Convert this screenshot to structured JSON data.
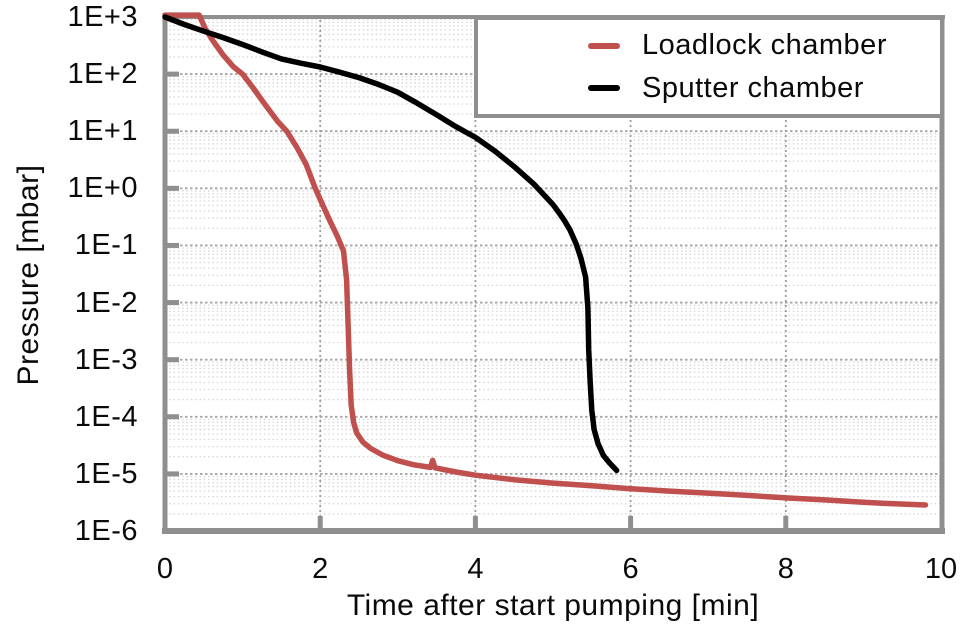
{
  "chart_data": {
    "type": "line",
    "title": "",
    "xlabel": "Time after start pumping [min]",
    "ylabel": "Pressure [mbar]",
    "x_axis": {
      "min": 0,
      "max": 10,
      "ticks": [
        0,
        2,
        4,
        6,
        8,
        10
      ],
      "gridline_ticks": [
        2,
        4,
        6,
        8
      ]
    },
    "y_axis": {
      "scale": "log10",
      "min": 1e-06,
      "max": 1000,
      "tick_labels": [
        "1E+3",
        "1E+2",
        "1E+1",
        "1E+0",
        "1E-1",
        "1E-2",
        "1E-3",
        "1E-4",
        "1E-5",
        "1E-6"
      ],
      "minor_gridlines": true
    },
    "legend": {
      "position": "top-right",
      "entries": [
        {
          "label": "Loadlock chamber",
          "color": "#c0504d"
        },
        {
          "label": "Sputter chamber",
          "color": "#000000"
        }
      ]
    },
    "series": [
      {
        "name": "Loadlock chamber",
        "color": "#c0504d",
        "points": [
          [
            0,
            1080
          ],
          [
            0.44,
            1080
          ],
          [
            0.52,
            620
          ],
          [
            0.62,
            380
          ],
          [
            0.75,
            215
          ],
          [
            0.88,
            135
          ],
          [
            1.0,
            100
          ],
          [
            1.15,
            54
          ],
          [
            1.3,
            28
          ],
          [
            1.45,
            15
          ],
          [
            1.57,
            10
          ],
          [
            1.7,
            5.2
          ],
          [
            1.82,
            2.6
          ],
          [
            1.93,
            1.05
          ],
          [
            2.03,
            0.52
          ],
          [
            2.13,
            0.26
          ],
          [
            2.22,
            0.145
          ],
          [
            2.3,
            0.08
          ],
          [
            2.34,
            0.025
          ],
          [
            2.36,
            0.004
          ],
          [
            2.38,
            0.0006
          ],
          [
            2.4,
            0.00016
          ],
          [
            2.43,
            8e-05
          ],
          [
            2.47,
            5.2e-05
          ],
          [
            2.55,
            3.6e-05
          ],
          [
            2.65,
            2.8e-05
          ],
          [
            2.8,
            2.15e-05
          ],
          [
            3.0,
            1.7e-05
          ],
          [
            3.2,
            1.45e-05
          ],
          [
            3.42,
            1.3e-05
          ],
          [
            3.45,
            1.72e-05
          ],
          [
            3.48,
            1.28e-05
          ],
          [
            3.75,
            1.08e-05
          ],
          [
            4.0,
            9.5e-06
          ],
          [
            4.5,
            7.9e-06
          ],
          [
            5.0,
            6.9e-06
          ],
          [
            5.5,
            6.2e-06
          ],
          [
            6.0,
            5.5e-06
          ],
          [
            6.5,
            5e-06
          ],
          [
            7.0,
            4.6e-06
          ],
          [
            7.5,
            4.2e-06
          ],
          [
            8.0,
            3.8e-06
          ],
          [
            8.5,
            3.5e-06
          ],
          [
            9.0,
            3.2e-06
          ],
          [
            9.4,
            3e-06
          ],
          [
            9.8,
            2.85e-06
          ]
        ]
      },
      {
        "name": "Sputter chamber",
        "color": "#000000",
        "points": [
          [
            0,
            1000
          ],
          [
            0.25,
            740
          ],
          [
            0.5,
            565
          ],
          [
            0.75,
            435
          ],
          [
            1.0,
            330
          ],
          [
            1.25,
            245
          ],
          [
            1.5,
            185
          ],
          [
            1.75,
            155
          ],
          [
            2.0,
            133
          ],
          [
            2.25,
            108
          ],
          [
            2.5,
            87
          ],
          [
            2.75,
            66
          ],
          [
            3.0,
            48
          ],
          [
            3.25,
            31
          ],
          [
            3.5,
            19.5
          ],
          [
            3.75,
            12
          ],
          [
            4.0,
            7.8
          ],
          [
            4.25,
            4.5
          ],
          [
            4.5,
            2.4
          ],
          [
            4.75,
            1.2
          ],
          [
            5.0,
            0.52
          ],
          [
            5.08,
            0.37
          ],
          [
            5.15,
            0.27
          ],
          [
            5.22,
            0.185
          ],
          [
            5.3,
            0.105
          ],
          [
            5.36,
            0.06
          ],
          [
            5.42,
            0.028
          ],
          [
            5.45,
            0.008
          ],
          [
            5.46,
            0.0015
          ],
          [
            5.48,
            0.0004
          ],
          [
            5.5,
            0.00013
          ],
          [
            5.53,
            6e-05
          ],
          [
            5.58,
            3.4e-05
          ],
          [
            5.65,
            2.1e-05
          ],
          [
            5.73,
            1.55e-05
          ],
          [
            5.82,
            1.15e-05
          ]
        ]
      }
    ]
  },
  "style": {
    "background": "#ffffff",
    "text_color": "#0a0a0a",
    "frame_color": "#8f8f8f",
    "major_grid_color": "#a6a6a6",
    "minor_grid_color": "#d6d6d6",
    "vertical_grid_color": "#9c9c9c"
  }
}
